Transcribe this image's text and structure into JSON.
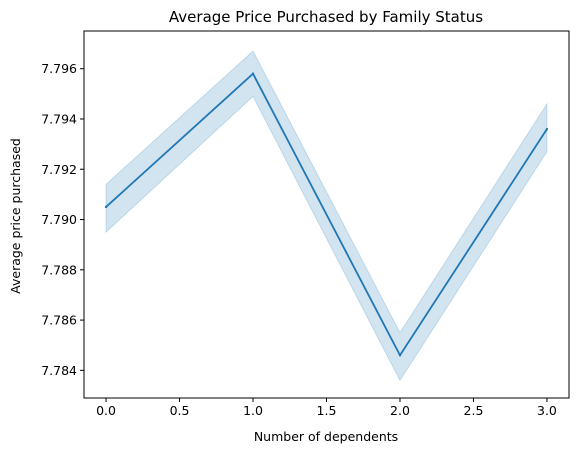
{
  "chart_data": {
    "type": "line",
    "title": "Average Price Purchased by Family Status",
    "xlabel": "Number of dependents",
    "ylabel": "Average price purchased",
    "xlim": [
      -0.15,
      3.15
    ],
    "ylim": [
      7.7829,
      7.7975
    ],
    "xticks": [
      0.0,
      0.5,
      1.0,
      1.5,
      2.0,
      2.5,
      3.0
    ],
    "xtick_labels": [
      "0.0",
      "0.5",
      "1.0",
      "1.5",
      "2.0",
      "2.5",
      "3.0"
    ],
    "yticks": [
      7.784,
      7.786,
      7.788,
      7.79,
      7.792,
      7.794,
      7.796
    ],
    "ytick_labels": [
      "7.784",
      "7.786",
      "7.788",
      "7.790",
      "7.792",
      "7.794",
      "7.796"
    ],
    "grid": false,
    "legend": "none",
    "series": [
      {
        "x": [
          0,
          1,
          2,
          3
        ],
        "y": [
          7.7905,
          7.7958,
          7.7846,
          7.7936
        ],
        "ci_low": [
          7.7895,
          7.7949,
          7.7836,
          7.7927
        ],
        "ci_high": [
          7.7914,
          7.7967,
          7.7855,
          7.7946
        ],
        "color": "#1f77b4",
        "band_color": "#1f77b4"
      }
    ]
  }
}
